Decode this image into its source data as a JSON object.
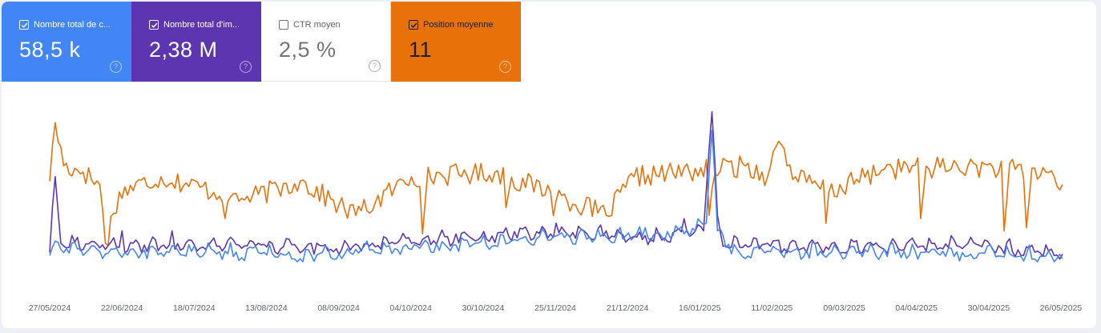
{
  "metrics": [
    {
      "id": "clicks",
      "label": "Nombre total de c...",
      "value": "58,5 k",
      "checked": true,
      "color": "#4285f4"
    },
    {
      "id": "impressions",
      "label": "Nombre total d'im...",
      "value": "2,38 M",
      "checked": true,
      "color": "#5e35b1"
    },
    {
      "id": "ctr",
      "label": "CTR moyen",
      "value": "2,5 %",
      "checked": false,
      "color": "#ffffff"
    },
    {
      "id": "position",
      "label": "Position moyenne",
      "value": "11",
      "checked": true,
      "color": "#e8710a"
    }
  ],
  "help_glyph": "?",
  "chart_data": {
    "type": "line",
    "x_tick_labels": [
      "27/05/2024",
      "22/06/2024",
      "18/07/2024",
      "13/08/2024",
      "08/09/2024",
      "04/10/2024",
      "30/10/2024",
      "25/11/2024",
      "21/12/2024",
      "16/01/2025",
      "11/02/2025",
      "09/03/2025",
      "04/04/2025",
      "30/04/2025",
      "26/05/2025"
    ],
    "x_range": [
      "27/05/2024",
      "26/05/2025"
    ],
    "grid": false,
    "y_axis_visible": false,
    "series": [
      {
        "metric": "position",
        "color": "#e8710a",
        "keypoints": [
          [
            0,
            0.52
          ],
          [
            2,
            0.9
          ],
          [
            5,
            0.62
          ],
          [
            12,
            0.58
          ],
          [
            18,
            0.5
          ],
          [
            20,
            0.12
          ],
          [
            25,
            0.45
          ],
          [
            40,
            0.55
          ],
          [
            70,
            0.4
          ],
          [
            90,
            0.52
          ],
          [
            110,
            0.3
          ],
          [
            130,
            0.55
          ],
          [
            160,
            0.58
          ],
          [
            180,
            0.45
          ],
          [
            200,
            0.3
          ],
          [
            210,
            0.55
          ],
          [
            250,
            0.62
          ],
          [
            258,
            0.55
          ],
          [
            262,
            0.78
          ],
          [
            268,
            0.55
          ],
          [
            280,
            0.45
          ],
          [
            300,
            0.6
          ],
          [
            330,
            0.62
          ],
          [
            358,
            0.58
          ],
          [
            364,
            0.5
          ]
        ],
        "dips": [
          [
            20,
            0.08
          ],
          [
            63,
            0.28
          ],
          [
            134,
            0.18
          ],
          [
            164,
            0.35
          ],
          [
            180,
            0.15
          ],
          [
            237,
            0.3
          ],
          [
            279,
            0.25
          ],
          [
            313,
            0.28
          ],
          [
            343,
            0.2
          ],
          [
            351,
            0.22
          ]
        ]
      },
      {
        "metric": "impressions",
        "color": "#5e35b1",
        "keypoints": [
          [
            0,
            0.06
          ],
          [
            2,
            0.55
          ],
          [
            4,
            0.12
          ],
          [
            20,
            0.08
          ],
          [
            60,
            0.1
          ],
          [
            100,
            0.07
          ],
          [
            130,
            0.12
          ],
          [
            180,
            0.18
          ],
          [
            220,
            0.14
          ],
          [
            235,
            0.2
          ],
          [
            238,
            0.97
          ],
          [
            240,
            0.3
          ],
          [
            242,
            0.1
          ],
          [
            280,
            0.08
          ],
          [
            320,
            0.09
          ],
          [
            364,
            0.05
          ]
        ],
        "spikes": [
          [
            26,
            0.2
          ],
          [
            44,
            0.2
          ],
          [
            75,
            0.12
          ],
          [
            96,
            0.12
          ],
          [
            116,
            0.12
          ],
          [
            146,
            0.18
          ],
          [
            164,
            0.22
          ],
          [
            182,
            0.25
          ],
          [
            200,
            0.2
          ],
          [
            218,
            0.22
          ],
          [
            228,
            0.28
          ],
          [
            266,
            0.12
          ],
          [
            294,
            0.12
          ],
          [
            336,
            0.14
          ]
        ]
      },
      {
        "metric": "clicks",
        "color": "#4285f4",
        "keypoints": [
          [
            0,
            0.04
          ],
          [
            4,
            0.08
          ],
          [
            20,
            0.05
          ],
          [
            60,
            0.05
          ],
          [
            90,
            0.02
          ],
          [
            130,
            0.08
          ],
          [
            180,
            0.14
          ],
          [
            220,
            0.16
          ],
          [
            232,
            0.2
          ],
          [
            236,
            0.25
          ],
          [
            238,
            0.85
          ],
          [
            240,
            0.2
          ],
          [
            245,
            0.05
          ],
          [
            280,
            0.05
          ],
          [
            364,
            0.02
          ]
        ],
        "spikes": [
          [
            8,
            0.12
          ],
          [
            74,
            0.1
          ],
          [
            110,
            0.08
          ],
          [
            150,
            0.14
          ],
          [
            186,
            0.18
          ],
          [
            214,
            0.22
          ],
          [
            228,
            0.18
          ],
          [
            260,
            0.1
          ],
          [
            300,
            0.08
          ]
        ]
      }
    ]
  }
}
